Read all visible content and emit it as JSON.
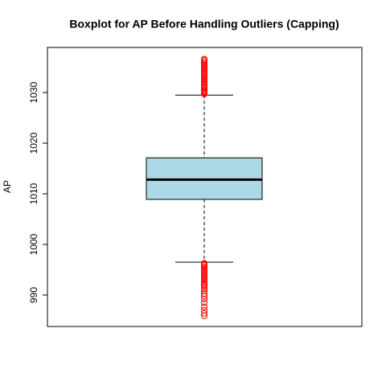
{
  "chart_data": {
    "type": "boxplot",
    "title": "Boxplot for AP Before Handling Outliers (Capping)",
    "ylabel": "AP",
    "ylim": [
      983.8,
      1038.9
    ],
    "yticks": [
      990,
      1000,
      1010,
      1020,
      1030
    ],
    "box": {
      "whisker_low": 996.5,
      "q1": 1008.9,
      "median": 1012.8,
      "q3": 1017.1,
      "whisker_high": 1029.5,
      "outliers": [
        1029.7,
        1029.9,
        1030.1,
        1030.3,
        1030.5,
        1030.8,
        1031.0,
        1031.3,
        1031.6,
        1031.9,
        1032.2,
        1032.5,
        1032.8,
        1033.1,
        1033.4,
        1033.7,
        1034.0,
        1034.3,
        1034.6,
        1034.9,
        1035.2,
        1035.5,
        1035.8,
        1036.1,
        1036.4,
        1036.6,
        996.3,
        996.1,
        995.9,
        995.6,
        995.3,
        995.0,
        994.7,
        994.4,
        994.1,
        993.8,
        993.5,
        993.2,
        992.9,
        992.6,
        992.3,
        992.0,
        991.6,
        991.2,
        990.8,
        990.3,
        989.8,
        989.2,
        988.5,
        987.7,
        987.0,
        986.4,
        985.9
      ]
    },
    "box_color": "#add8e6",
    "outlier_color": "#ff0000"
  }
}
